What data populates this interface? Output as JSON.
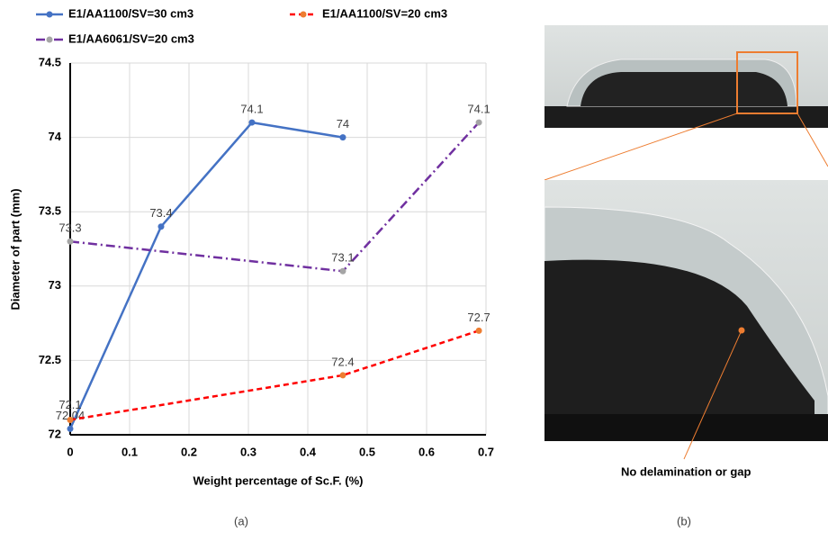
{
  "chart_data": {
    "type": "line",
    "x_label": "Weight percentage of Sc.F. (%)",
    "y_label": "Diameter of part (mm)",
    "xlim": [
      0,
      0.7
    ],
    "xticks": [
      0,
      0.1,
      0.2,
      0.3,
      0.4,
      0.5,
      0.6,
      0.7
    ],
    "ylim": [
      72,
      74.5
    ],
    "yticks": [
      72,
      72.5,
      73,
      73.5,
      74,
      74.5
    ],
    "grid": true,
    "series": [
      {
        "name": "E1/AA1100/SV=30 cm3",
        "color": "#4472c4",
        "marker_color": "#4472c4",
        "line_style": "solid",
        "x": [
          0,
          0.153,
          0.306,
          0.459
        ],
        "values": [
          72.04,
          73.4,
          74.1,
          74
        ]
      },
      {
        "name": "E1/AA1100/SV=20 cm3",
        "color": "#ff0000",
        "marker_color": "#ed7d31",
        "line_style": "dashed",
        "x": [
          0,
          0.459,
          0.688
        ],
        "values": [
          72.1,
          72.4,
          72.7
        ]
      },
      {
        "name": "E1/AA6061/SV=20 cm3",
        "color": "#7030a0",
        "marker_color": "#a5a5a5",
        "line_style": "dashdot",
        "x": [
          0,
          0.459,
          0.688
        ],
        "values": [
          73.3,
          73.1,
          74.1
        ]
      }
    ]
  },
  "panels": {
    "a_caption": "(a)",
    "b_caption": "(b)",
    "b_annotation": "No delamination or gap"
  }
}
